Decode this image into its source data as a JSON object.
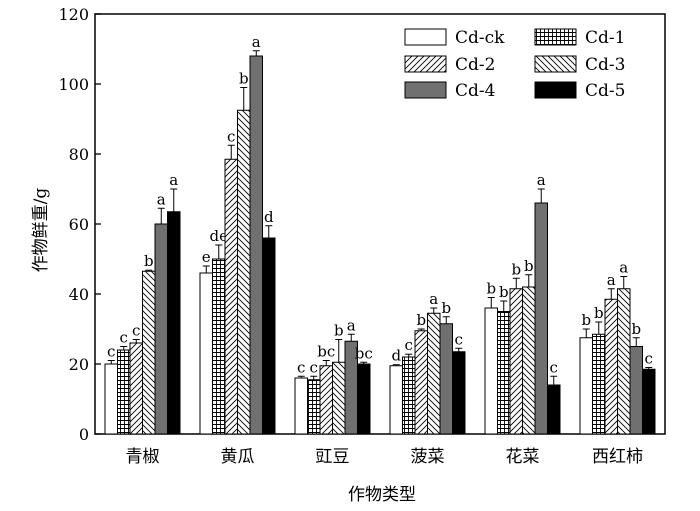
{
  "chart_data": {
    "type": "bar",
    "xlabel": "作物类型",
    "ylabel": "作物鲜重/g",
    "ylim": [
      0,
      120
    ],
    "yticks": [
      0,
      20,
      40,
      60,
      80,
      100,
      120
    ],
    "grid": false,
    "legend_position": "top-right",
    "categories": [
      "青椒",
      "黄瓜",
      "豇豆",
      "菠菜",
      "花菜",
      "西红柿"
    ],
    "series": [
      {
        "name": "Cd-ck",
        "pattern": "white",
        "values": [
          20,
          46,
          16,
          19.5,
          36,
          27.5
        ],
        "errors": [
          1,
          2,
          0.5,
          0.3,
          3,
          2.5
        ],
        "labels": [
          "c",
          "e",
          "c",
          "d",
          "b",
          "b"
        ]
      },
      {
        "name": "Cd-1",
        "pattern": "grid",
        "values": [
          24,
          50,
          15.5,
          22,
          35,
          28.5
        ],
        "errors": [
          1,
          4,
          1,
          0.8,
          3,
          3.5
        ],
        "labels": [
          "c",
          "de",
          "c",
          "c",
          "b",
          "b"
        ]
      },
      {
        "name": "Cd-2",
        "pattern": "diag-right",
        "values": [
          26,
          78.5,
          19.5,
          29.5,
          41.5,
          38.5
        ],
        "errors": [
          1,
          4,
          1.5,
          0.5,
          3,
          3
        ],
        "labels": [
          "c",
          "c",
          "bc",
          "b",
          "b",
          "a"
        ]
      },
      {
        "name": "Cd-3",
        "pattern": "diag-left",
        "values": [
          46.5,
          92.5,
          20.5,
          34.5,
          42,
          41.5
        ],
        "errors": [
          0.3,
          6.5,
          6.5,
          1.5,
          3.5,
          3.5
        ],
        "labels": [
          "b",
          "b",
          "b",
          "a",
          "b",
          "a"
        ]
      },
      {
        "name": "Cd-4",
        "pattern": "gray",
        "values": [
          60,
          108,
          26.5,
          31.5,
          66,
          25
        ],
        "errors": [
          4.5,
          1.5,
          2,
          2,
          4,
          2.5
        ],
        "labels": [
          "a",
          "a",
          "a",
          "b",
          "a",
          "b"
        ]
      },
      {
        "name": "Cd-5",
        "pattern": "black",
        "values": [
          63.5,
          56,
          20,
          23.5,
          14,
          18.5
        ],
        "errors": [
          6.5,
          3.5,
          0.5,
          1,
          2.5,
          0.5
        ],
        "labels": [
          "a",
          "d",
          "bc",
          "c",
          "c",
          "c"
        ]
      }
    ]
  }
}
